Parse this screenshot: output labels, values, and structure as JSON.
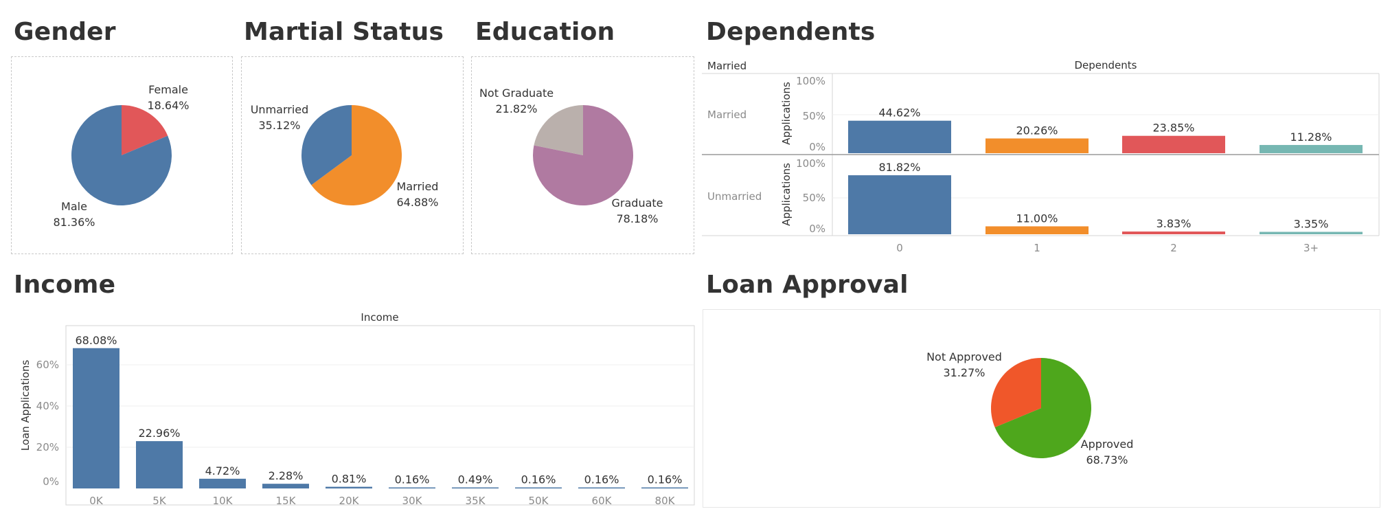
{
  "titles": {
    "gender": "Gender",
    "marital": "Martial Status",
    "education": "Education",
    "dependents": "Dependents",
    "income": "Income",
    "loan": "Loan Approval"
  },
  "colors": {
    "blue": "#4e79a7",
    "orange": "#f28e2b",
    "red": "#e15759",
    "teal": "#76b7b2",
    "gray": "#bab0ac",
    "purple": "#b07aa1",
    "approved_green": "#4ea71c",
    "not_approved_orange": "#f0572a"
  },
  "chart_data": [
    {
      "id": "gender",
      "type": "pie",
      "title": "Gender",
      "slices": [
        {
          "label": "Female",
          "pct_text": "18.64%",
          "value": 18.64,
          "color": "#e15759"
        },
        {
          "label": "Male",
          "pct_text": "81.36%",
          "value": 81.36,
          "color": "#4e79a7"
        }
      ]
    },
    {
      "id": "marital",
      "type": "pie",
      "title": "Martial Status",
      "slices": [
        {
          "label": "Married",
          "pct_text": "64.88%",
          "value": 64.88,
          "color": "#f28e2b"
        },
        {
          "label": "Unmarried",
          "pct_text": "35.12%",
          "value": 35.12,
          "color": "#4e79a7"
        }
      ]
    },
    {
      "id": "education",
      "type": "pie",
      "title": "Education",
      "slices": [
        {
          "label": "Graduate",
          "pct_text": "78.18%",
          "value": 78.18,
          "color": "#b07aa1"
        },
        {
          "label": "Not Graduate",
          "pct_text": "21.82%",
          "value": 21.82,
          "color": "#bab0ac"
        }
      ]
    },
    {
      "id": "dependents",
      "type": "bar",
      "title": "Dependents",
      "row_header": "Married",
      "col_header": "Dependents",
      "ylabel": "Applications",
      "categories": [
        "0",
        "1",
        "2",
        "3+"
      ],
      "colors": [
        "#4e79a7",
        "#f28e2b",
        "#e15759",
        "#76b7b2"
      ],
      "yticks": [
        "100%",
        "50%",
        "0%"
      ],
      "ylim": [
        0,
        100
      ],
      "rows": [
        {
          "name": "Married",
          "values": [
            44.62,
            20.26,
            23.85,
            11.28
          ],
          "labels": [
            "44.62%",
            "20.26%",
            "23.85%",
            "11.28%"
          ]
        },
        {
          "name": "Unmarried",
          "values": [
            81.82,
            11.0,
            3.83,
            3.35
          ],
          "labels": [
            "81.82%",
            "11.00%",
            "3.83%",
            "3.35%"
          ]
        }
      ]
    },
    {
      "id": "income",
      "type": "bar",
      "title": "Income",
      "col_header": "Income",
      "ylabel": "Loan Applications",
      "categories": [
        "0K",
        "5K",
        "10K",
        "15K",
        "20K",
        "30K",
        "35K",
        "50K",
        "60K",
        "80K"
      ],
      "values": [
        68.08,
        22.96,
        4.72,
        2.28,
        0.81,
        0.16,
        0.49,
        0.16,
        0.16,
        0.16
      ],
      "labels": [
        "68.08%",
        "22.96%",
        "4.72%",
        "2.28%",
        "0.81%",
        "0.16%",
        "0.49%",
        "0.16%",
        "0.16%",
        "0.16%"
      ],
      "yticks": [
        "60%",
        "40%",
        "20%",
        "0%"
      ],
      "ylim": [
        0,
        72
      ],
      "color": "#4e79a7"
    },
    {
      "id": "loan",
      "type": "pie",
      "title": "Loan Approval",
      "slices": [
        {
          "label": "Approved",
          "pct_text": "68.73%",
          "value": 68.73,
          "color": "#4ea71c"
        },
        {
          "label": "Not Approved",
          "pct_text": "31.27%",
          "value": 31.27,
          "color": "#f0572a"
        }
      ]
    }
  ]
}
